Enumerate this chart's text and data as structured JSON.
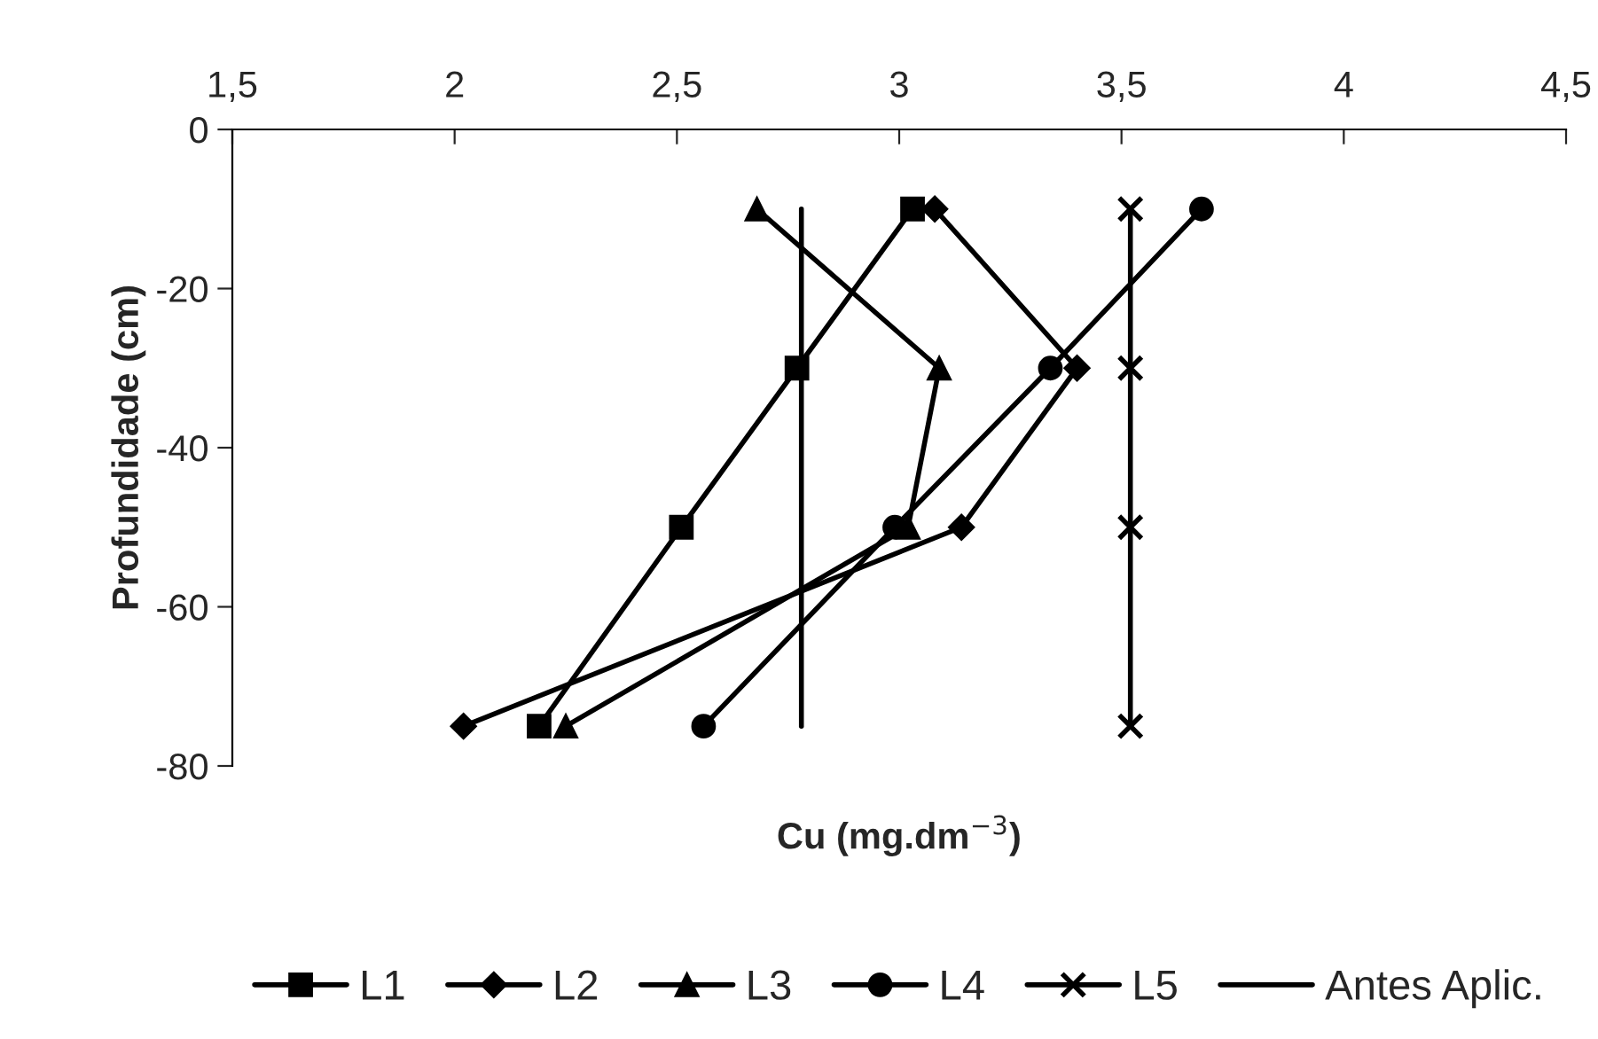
{
  "chart_data": {
    "type": "line",
    "xlabel": "Cu (mg.dm$^{−3}$)",
    "ylabel": "Profundidade (cm)",
    "xlim": [
      1.5,
      4.5
    ],
    "xticks": [
      {
        "value": 1.5,
        "label": "1,5"
      },
      2,
      {
        "value": 2.5,
        "label": "2,5"
      },
      3,
      {
        "value": 3.5,
        "label": "3,5"
      },
      4,
      {
        "value": 4.5,
        "label": "4,5"
      }
    ],
    "ylim": [
      -80,
      0
    ],
    "yticks": [
      -80,
      -60,
      -40,
      -20,
      0
    ],
    "grid": false,
    "legend": "bottom",
    "line_style": "solid",
    "series": [
      {
        "name": "L1",
        "color": "#000000",
        "marker": "square",
        "x": [
          3.03,
          2.77,
          2.51,
          2.19
        ],
        "values": [
          -10,
          -30,
          -50,
          -75
        ]
      },
      {
        "name": "L2",
        "color": "#000000",
        "marker": "diamond",
        "x": [
          3.08,
          3.4,
          3.14,
          2.02
        ],
        "values": [
          -10,
          -30,
          -50,
          -75
        ]
      },
      {
        "name": "L3",
        "color": "#000000",
        "marker": "triangle",
        "x": [
          2.68,
          3.09,
          3.02,
          2.25
        ],
        "values": [
          -10,
          -30,
          -50,
          -75
        ]
      },
      {
        "name": "L4",
        "color": "#000000",
        "marker": "circle",
        "x": [
          3.68,
          3.34,
          2.99,
          2.56
        ],
        "values": [
          -10,
          -30,
          -50,
          -75
        ]
      },
      {
        "name": "L5",
        "color": "#000000",
        "marker": "cross",
        "x": [
          3.52,
          3.52,
          3.52,
          3.52
        ],
        "values": [
          -10,
          -30,
          -50,
          -75
        ]
      },
      {
        "name": "Antes Aplic.",
        "color": "#000000",
        "marker": "none",
        "x": [
          2.78,
          2.78
        ],
        "values": [
          -10,
          -75
        ]
      }
    ]
  }
}
